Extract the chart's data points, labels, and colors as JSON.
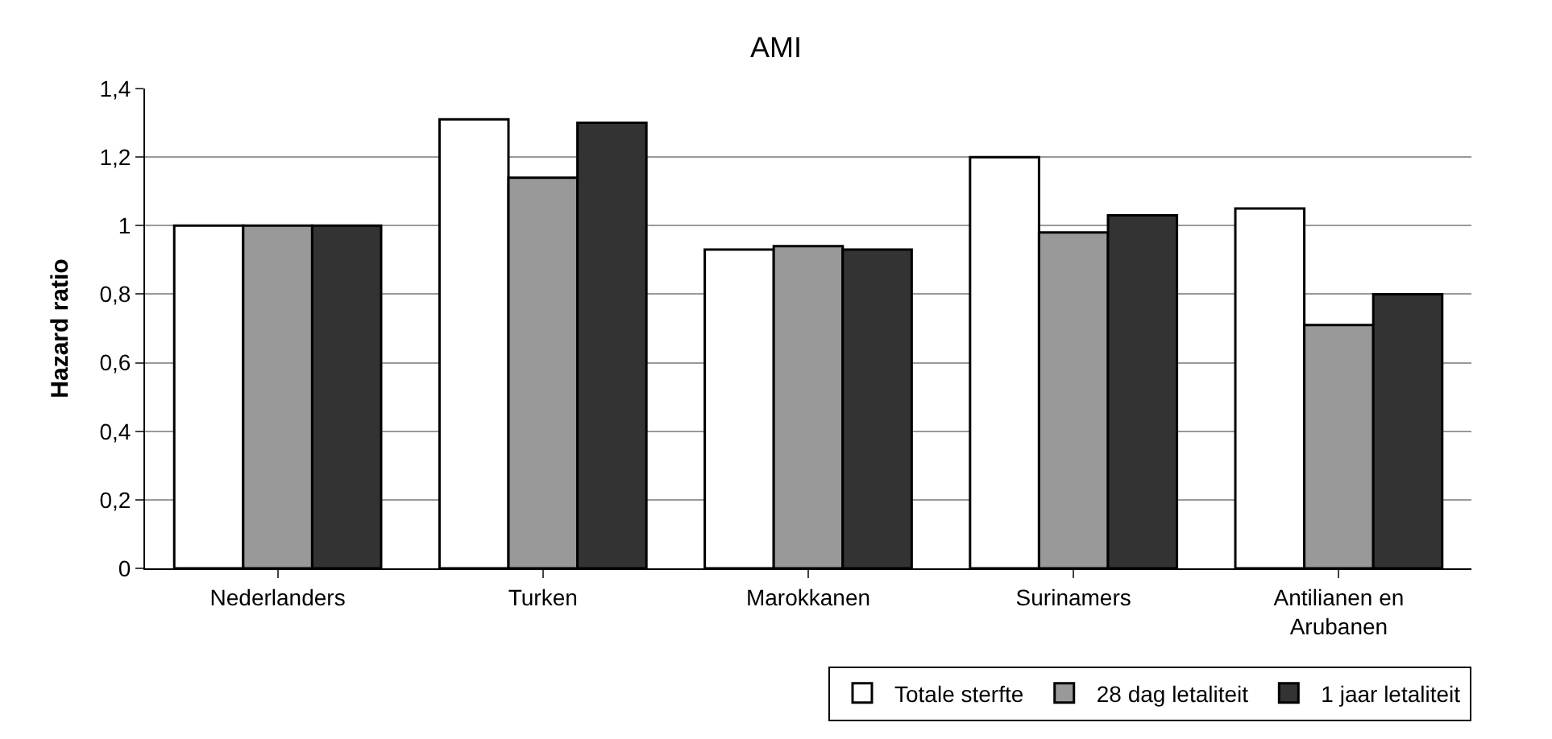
{
  "chart_data": {
    "type": "bar",
    "title": "AMI",
    "ylabel": "Hazard ratio",
    "categories": [
      "Nederlanders",
      "Turken",
      "Marokkanen",
      "Surinamers",
      "Antilianen en Arubanen"
    ],
    "series": [
      {
        "name": "Totale sterfte",
        "color": "#ffffff",
        "values": [
          1.0,
          1.31,
          0.93,
          1.2,
          1.05
        ]
      },
      {
        "name": "28 dag letaliteit",
        "color": "#999999",
        "values": [
          1.0,
          1.14,
          0.94,
          0.98,
          0.71
        ]
      },
      {
        "name": "1 jaar letaliteit",
        "color": "#333333",
        "values": [
          1.0,
          1.3,
          0.93,
          1.03,
          0.8
        ]
      }
    ],
    "ylim": [
      0,
      1.4
    ],
    "yticks": [
      0,
      {
        "value": 0.2,
        "label": "0,2"
      },
      {
        "value": 0.4,
        "label": "0,4"
      },
      {
        "value": 0.6,
        "label": "0,6"
      },
      {
        "value": 0.8,
        "label": "0,8"
      },
      1,
      {
        "value": 1.2,
        "label": "1,2"
      },
      {
        "value": 1.4,
        "label": "1,4"
      }
    ],
    "grid": "y",
    "legend": "bottom right"
  }
}
